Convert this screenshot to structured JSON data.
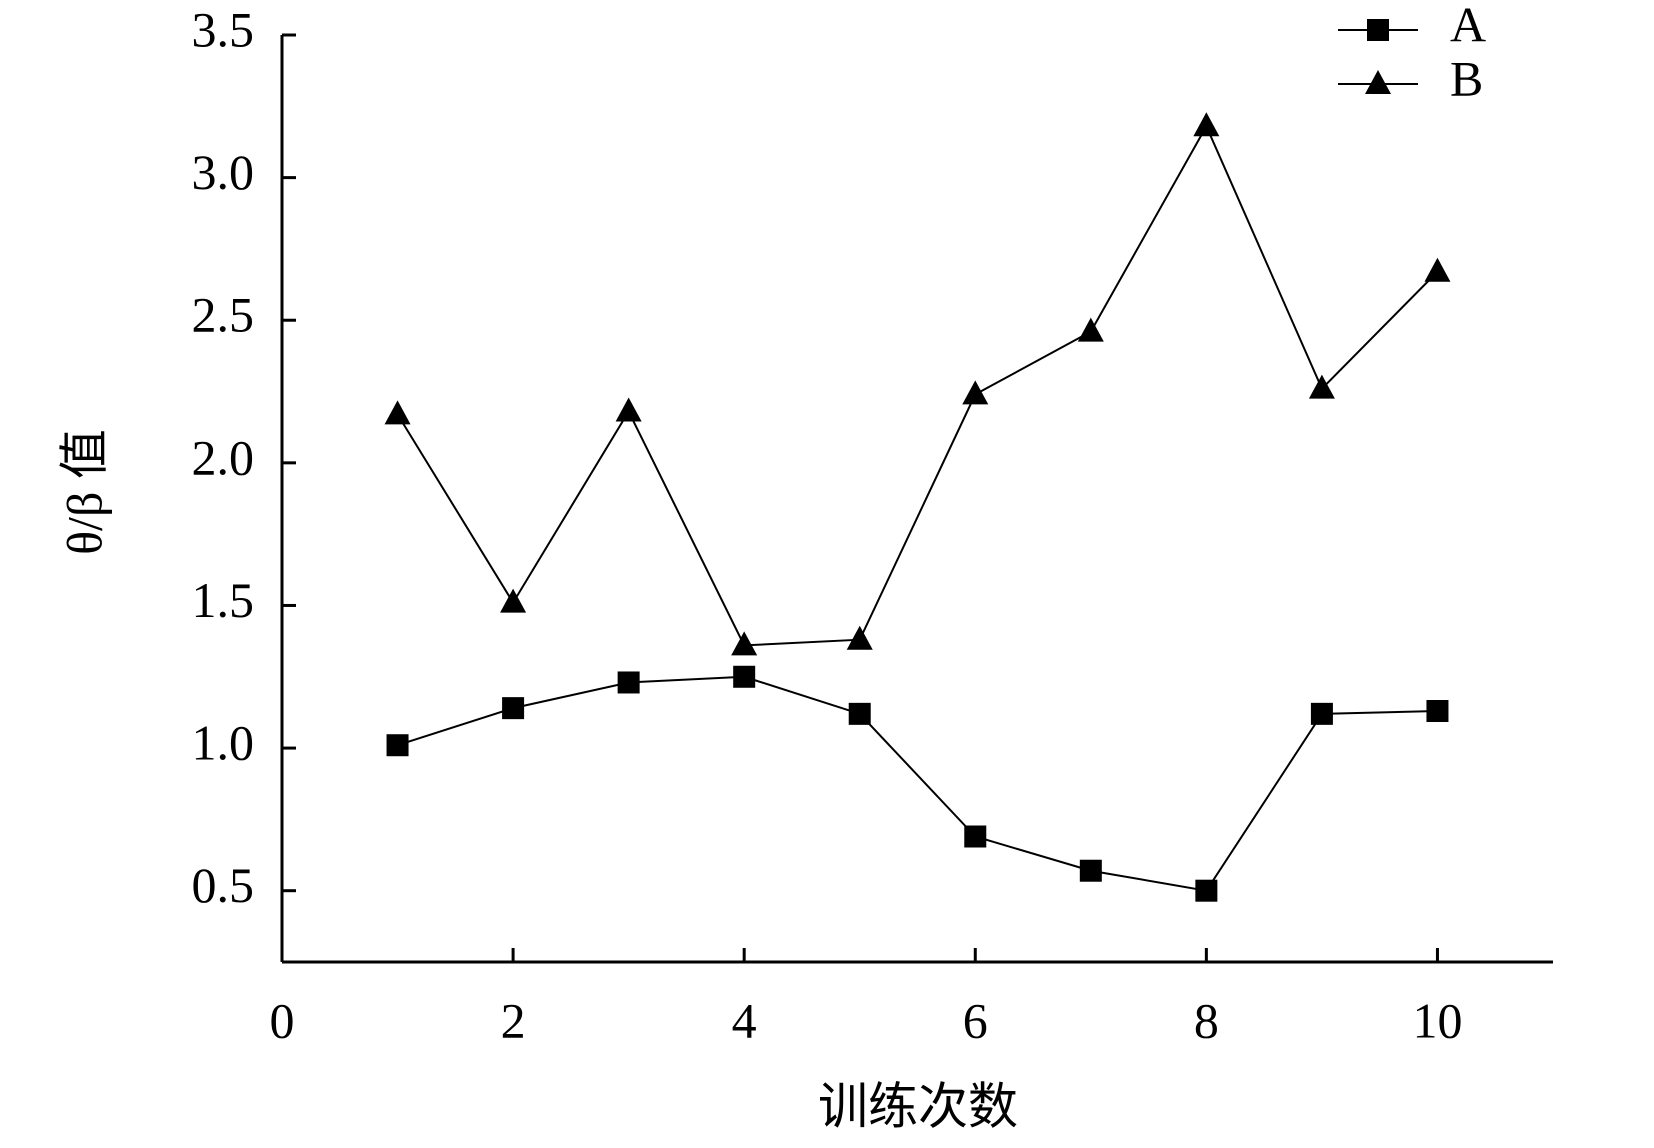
{
  "chart_data": {
    "type": "line",
    "x_label": "训练次数",
    "y_label": "θ/β 值",
    "series": [
      {
        "name": "A",
        "color": "#000000",
        "marker": "square",
        "x": [
          1,
          2,
          3,
          4,
          5,
          6,
          7,
          8,
          9,
          10
        ],
        "values": [
          1.01,
          1.14,
          1.23,
          1.25,
          1.12,
          0.69,
          0.57,
          0.5,
          1.12,
          1.13
        ]
      },
      {
        "name": "B",
        "color": "#000000",
        "marker": "triangle",
        "x": [
          1,
          2,
          3,
          4,
          5,
          6,
          7,
          8,
          9,
          10
        ],
        "values": [
          2.17,
          1.51,
          2.18,
          1.36,
          1.38,
          2.24,
          2.46,
          3.18,
          2.26,
          2.67
        ]
      }
    ],
    "xlim": [
      0,
      11
    ],
    "xticks": [
      0,
      2,
      4,
      6,
      8,
      10
    ],
    "ylim": [
      0.25,
      3.5
    ],
    "yticks": [
      0.5,
      {
        "value": 1,
        "label": "1.0"
      },
      1.5,
      {
        "value": 2,
        "label": "2.0"
      },
      2.5,
      {
        "value": 3,
        "label": "3.0"
      },
      3.5
    ],
    "legend": "top-right",
    "grid": false
  }
}
